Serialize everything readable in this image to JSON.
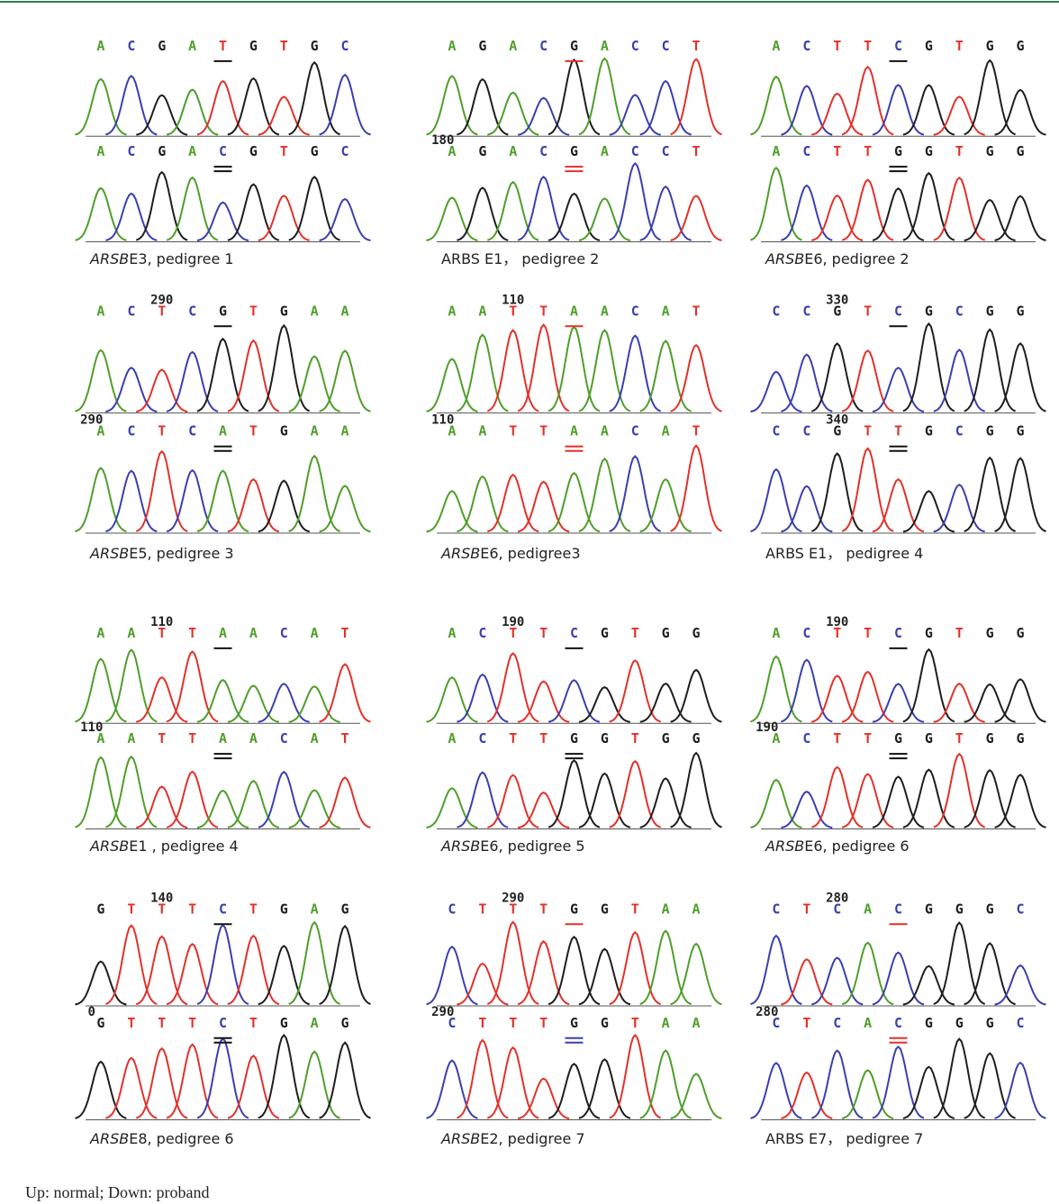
{
  "panels": [
    {
      "top": {
        "bases": [
          "A",
          "C",
          "G",
          "A",
          "T",
          "G",
          "T",
          "G",
          "C"
        ]
      },
      "bottom": {
        "bases": [
          "A",
          "C",
          "G",
          "A",
          "C",
          "G",
          "T",
          "G",
          "C"
        ]
      },
      "caption": [
        "ARSB",
        "E3, pedigree 1"
      ]
    },
    {
      "top": {
        "bases": [
          "A",
          "G",
          "A",
          "C",
          "G",
          "A",
          "C",
          "C",
          "T"
        ]
      },
      "bottom": {
        "position": 180,
        "bases": [
          "A",
          "G",
          "A",
          "C",
          "G",
          "A",
          "C",
          "C",
          "T"
        ]
      },
      "caption": [
        "ARBS E1， pedigree 2"
      ]
    },
    {
      "top": {
        "bases": [
          "A",
          "C",
          "T",
          "T",
          "C",
          "G",
          "T",
          "G",
          "G"
        ]
      },
      "bottom": {
        "bases": [
          "A",
          "C",
          "T",
          "T",
          "G",
          "G",
          "T",
          "G",
          "G"
        ]
      },
      "caption": [
        "ARSB",
        "E6, pedigree 2"
      ]
    },
    {
      "top": {
        "position": 290,
        "bases": [
          "A",
          "C",
          "T",
          "C",
          "G",
          "T",
          "G",
          "A",
          "A"
        ]
      },
      "bottom": {
        "position": 290,
        "bases": [
          "A",
          "C",
          "T",
          "C",
          "A",
          "T",
          "G",
          "A",
          "A"
        ]
      },
      "caption": [
        "ARSB",
        "E5, pedigree 3"
      ]
    },
    {
      "top": {
        "position": 110,
        "bases": [
          "A",
          "A",
          "T",
          "T",
          "A",
          "A",
          "C",
          "A",
          "T"
        ]
      },
      "bottom": {
        "position": 110,
        "bases": [
          "A",
          "A",
          "T",
          "T",
          "A",
          "A",
          "C",
          "A",
          "T"
        ]
      },
      "caption": [
        "ARSB",
        "E6, pedigree3"
      ]
    },
    {
      "top": {
        "position": 330,
        "bases": [
          "C",
          "C",
          "G",
          "T",
          "C",
          "G",
          "C",
          "G",
          "G"
        ]
      },
      "bottom": {
        "position": 340,
        "bases": [
          "C",
          "C",
          "G",
          "T",
          "T",
          "G",
          "C",
          "G",
          "G"
        ]
      },
      "caption": [
        "ARBS E1， pedigree 4"
      ]
    },
    {
      "top": {
        "position": 110,
        "bases": [
          "A",
          "A",
          "T",
          "T",
          "A",
          "A",
          "C",
          "A",
          "T"
        ]
      },
      "bottom": {
        "position": 110,
        "bases": [
          "A",
          "A",
          "T",
          "T",
          "A",
          "A",
          "C",
          "A",
          "T"
        ]
      },
      "caption": [
        "ARSB",
        "E1 , pedigree 4"
      ]
    },
    {
      "top": {
        "position": 190,
        "bases": [
          "A",
          "C",
          "T",
          "T",
          "C",
          "G",
          "T",
          "G",
          "G"
        ]
      },
      "bottom": {
        "bases": [
          "A",
          "C",
          "T",
          "T",
          "G",
          "G",
          "T",
          "G",
          "G"
        ]
      },
      "caption": [
        "ARSB",
        "E6, pedigree 5"
      ]
    },
    {
      "top": {
        "position": 190,
        "bases": [
          "A",
          "C",
          "T",
          "T",
          "C",
          "G",
          "T",
          "G",
          "G"
        ]
      },
      "bottom": {
        "position": 190,
        "bases": [
          "A",
          "C",
          "T",
          "T",
          "G",
          "G",
          "T",
          "G",
          "G"
        ]
      },
      "caption": [
        "ARSB",
        "E6, pedigree 6"
      ]
    },
    {
      "top": {
        "position": 140,
        "bases": [
          "G",
          "T",
          "T",
          "T",
          "C",
          "T",
          "G",
          "A",
          "G"
        ]
      },
      "bottom": {
        "position": 0,
        "bases": [
          "G",
          "T",
          "T",
          "T",
          "C",
          "T",
          "G",
          "A",
          "G"
        ]
      },
      "caption": [
        "ARSB",
        "E8, pedigree 6"
      ]
    },
    {
      "top": {
        "position": 290,
        "bases": [
          "C",
          "T",
          "T",
          "T",
          "G",
          "G",
          "T",
          "A",
          "A"
        ]
      },
      "bottom": {
        "position": 290,
        "bases": [
          "C",
          "T",
          "T",
          "T",
          "G",
          "G",
          "T",
          "A",
          "A"
        ]
      },
      "caption": [
        "ARSB",
        "E2, pedigree 7"
      ]
    },
    {
      "top": {
        "position": 280,
        "bases": [
          "C",
          "T",
          "C",
          "A",
          "C",
          "G",
          "G",
          "G",
          "C"
        ]
      },
      "bottom": {
        "position": 280,
        "bases": [
          "C",
          "T",
          "C",
          "A",
          "C",
          "G",
          "G",
          "G",
          "C"
        ]
      },
      "caption": [
        "ARBS E7， pedigree 7"
      ]
    }
  ],
  "footer": "Up: normal; Down: proband"
}
